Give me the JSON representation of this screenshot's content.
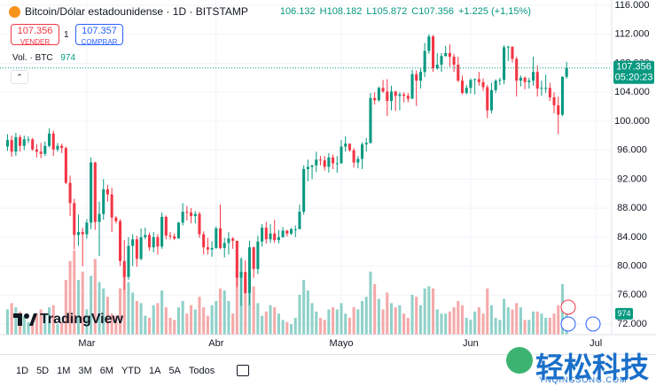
{
  "header": {
    "title": "Bitcoin/Dólar estadounidense · 1D · BITSTAMP",
    "open": "106.132",
    "high": "H108.182",
    "low": "L105.872",
    "close": "C107.356",
    "change": "+1.225 (+1,15%)"
  },
  "trade": {
    "sell_price": "107.356",
    "sell_label": "VENDER",
    "spread": "1",
    "buy_price": "107.357",
    "buy_label": "COMPRAR"
  },
  "volume_legend": {
    "label": "Vol. · BTC"
  },
  "branding": {
    "logo": "TradingView"
  },
  "ranges": [
    "1D",
    "5D",
    "1M",
    "3M",
    "6M",
    "YTD",
    "1A",
    "5A",
    "Todos"
  ],
  "watermark": {
    "title": "轻松科技",
    "url": "YNQINGSONG.COM"
  },
  "chart_data": {
    "type": "candlestick",
    "up_color": "#089981",
    "down_color": "#f23645",
    "up_volume_color": "#8fd1c9",
    "down_volume_color": "#f5a9a9",
    "grid": true,
    "last_price_label": "107.356",
    "countdown": "05:20:23",
    "xlim": [
      -1.8,
      144.8
    ],
    "xticks": [
      {
        "value": 19,
        "label": "Mar"
      },
      {
        "value": 50,
        "label": "Abr"
      },
      {
        "value": 80,
        "label": "Mayo"
      },
      {
        "value": 111,
        "label": "Jun"
      },
      {
        "value": 141,
        "label": "Jul"
      }
    ],
    "ylim": [
      70540,
      116730
    ],
    "yticks": [
      {
        "value": 72000,
        "label": "72.000"
      },
      {
        "value": 76000,
        "label": "76.000"
      },
      {
        "value": 80000,
        "label": "80.000"
      },
      {
        "value": 84000,
        "label": "84.000"
      },
      {
        "value": 88000,
        "label": "88.000"
      },
      {
        "value": 92000,
        "label": "92.000"
      },
      {
        "value": 96000,
        "label": "96.000"
      },
      {
        "value": 100000,
        "label": "100.000"
      },
      {
        "value": 104000,
        "label": "104.000"
      },
      {
        "value": 108000,
        "label": "108.000"
      },
      {
        "value": 112000,
        "label": "112.000"
      },
      {
        "value": 116000,
        "label": "116.000"
      }
    ],
    "open": [
      96500,
      97400,
      95800,
      97800,
      96600,
      97500,
      97500,
      96100,
      95800,
      95500,
      96600,
      98300,
      96100,
      96600,
      96300,
      91500,
      88700,
      84300,
      84700,
      84400,
      86000,
      94300,
      86100,
      87200,
      90600,
      89900,
      86700,
      86200,
      80700,
      78500,
      82800,
      83700,
      81000,
      84000,
      84300,
      82600,
      84000,
      82700,
      86800,
      84200,
      84100,
      83800,
      86000,
      87500,
      87400,
      86900,
      87200,
      84400,
      82600,
      82300,
      82500,
      85200,
      82500,
      83200,
      83800,
      83500,
      78400,
      79200,
      76300,
      82600,
      79600,
      83400,
      85300,
      83700,
      84500,
      83600,
      84000,
      84900,
      84500,
      85100,
      85100,
      87500,
      93400,
      93700,
      93900,
      94700,
      94600,
      93700,
      95000,
      94200,
      94200,
      96500,
      96900,
      96000,
      94300,
      94800,
      96800,
      97000,
      103200,
      102900,
      104600,
      104100,
      102800,
      104100,
      103500,
      103700,
      103500,
      103100,
      106500,
      105600,
      106800,
      109700,
      111700,
      107300,
      107800,
      109000,
      109400,
      108900,
      107800,
      105600,
      103900,
      104600,
      105700,
      105800,
      105400,
      104700,
      101500,
      104300,
      105600,
      105700,
      110200,
      110300,
      108600,
      105600,
      106000,
      105400,
      105600,
      106800,
      104500,
      104600,
      104600,
      103300,
      102200,
      100900,
      106132
    ],
    "high": [
      98200,
      98000,
      98400,
      98100,
      98000,
      97900,
      97700,
      96800,
      97000,
      97200,
      99000,
      98700,
      97000,
      96900,
      96500,
      92500,
      89300,
      87100,
      85300,
      86500,
      95000,
      94400,
      88900,
      92000,
      91200,
      90800,
      86900,
      86500,
      83600,
      84000,
      84400,
      84200,
      85200,
      85300,
      84600,
      84700,
      84400,
      87400,
      87000,
      84700,
      84500,
      86100,
      88700,
      88300,
      88000,
      87600,
      87500,
      84800,
      83900,
      83400,
      85500,
      88500,
      83900,
      84700,
      84000,
      83500,
      81200,
      80800,
      83500,
      82700,
      84200,
      85800,
      86100,
      85800,
      86400,
      85000,
      85400,
      85000,
      85300,
      85600,
      88500,
      93900,
      94700,
      94000,
      95800,
      95200,
      95200,
      95600,
      95400,
      95200,
      97400,
      97900,
      96900,
      96300,
      95200,
      97100,
      97700,
      103900,
      104000,
      104800,
      105700,
      105800,
      104900,
      104200,
      104000,
      104000,
      103900,
      107100,
      107000,
      107300,
      110800,
      112000,
      111900,
      109400,
      109400,
      110400,
      110600,
      109300,
      108900,
      106300,
      105000,
      105900,
      105900,
      106800,
      105900,
      105000,
      105300,
      105800,
      106000,
      110500,
      110400,
      110300,
      108900,
      106300,
      106200,
      106000,
      108900,
      107700,
      105600,
      106400,
      105300,
      104000,
      103400,
      106200,
      108182
    ],
    "low": [
      95900,
      95100,
      95200,
      95800,
      96000,
      97000,
      95900,
      95000,
      94900,
      95200,
      96400,
      95200,
      95800,
      95600,
      91300,
      86900,
      82300,
      82800,
      80000,
      83800,
      85100,
      85000,
      81400,
      86400,
      88900,
      84700,
      85900,
      80000,
      76700,
      78100,
      80000,
      79900,
      80800,
      83700,
      82100,
      81900,
      81600,
      82400,
      83700,
      83700,
      83600,
      83800,
      85600,
      86300,
      85900,
      85900,
      83900,
      81600,
      81600,
      81300,
      82400,
      82300,
      81200,
      81600,
      82400,
      77100,
      74500,
      76200,
      74600,
      78400,
      78900,
      82700,
      83100,
      83200,
      83200,
      83100,
      83900,
      84100,
      84300,
      84000,
      85100,
      87100,
      91700,
      92000,
      93000,
      93900,
      93200,
      92900,
      93400,
      92900,
      94100,
      95800,
      95800,
      93600,
      93500,
      93400,
      95800,
      96900,
      102300,
      102700,
      103900,
      100700,
      101500,
      101400,
      101500,
      102600,
      102600,
      103100,
      102100,
      104500,
      106100,
      109300,
      106800,
      107100,
      106800,
      108900,
      107500,
      106800,
      105400,
      103700,
      103700,
      103800,
      103700,
      104900,
      104200,
      100400,
      101100,
      103900,
      105000,
      105100,
      108300,
      108100,
      103400,
      104800,
      104400,
      104500,
      104900,
      103400,
      103500,
      103900,
      102800,
      101100,
      98200,
      100700,
      105872
    ],
    "close": [
      97400,
      95800,
      97800,
      96600,
      97500,
      97500,
      96100,
      95800,
      95500,
      96600,
      98300,
      96100,
      96600,
      96300,
      91500,
      88700,
      84300,
      84700,
      84400,
      86000,
      94300,
      86100,
      87200,
      90600,
      89900,
      86700,
      86200,
      80700,
      78500,
      82800,
      83700,
      81000,
      84000,
      84300,
      82600,
      84000,
      82700,
      86800,
      84200,
      84100,
      83800,
      86000,
      87500,
      87400,
      86900,
      87200,
      84400,
      82600,
      82300,
      82500,
      85200,
      82500,
      83200,
      83800,
      83500,
      78400,
      79200,
      76300,
      82600,
      79600,
      83400,
      85300,
      83700,
      84500,
      83600,
      84000,
      84900,
      84500,
      85100,
      85100,
      87500,
      93400,
      93700,
      93900,
      94700,
      94600,
      93700,
      95000,
      94200,
      94200,
      96500,
      96900,
      96000,
      94300,
      94800,
      96800,
      97000,
      103200,
      102900,
      104600,
      104100,
      102800,
      104100,
      103500,
      103700,
      103500,
      103100,
      106500,
      105600,
      106800,
      109700,
      111700,
      107300,
      107800,
      109000,
      109400,
      108900,
      107800,
      105600,
      103900,
      104600,
      105700,
      105800,
      105400,
      104700,
      101500,
      104300,
      105600,
      105700,
      110200,
      110300,
      108600,
      105600,
      106000,
      105400,
      105600,
      106800,
      104500,
      104600,
      104600,
      103300,
      102200,
      100900,
      106131,
      107356
    ],
    "volume": [
      1200,
      1500,
      1300,
      1100,
      900,
      600,
      500,
      1000,
      1200,
      1000,
      1300,
      1400,
      500,
      600,
      2600,
      3500,
      4000,
      2600,
      3000,
      1200,
      2800,
      3600,
      2500,
      2200,
      1800,
      1000,
      900,
      2200,
      3300,
      2500,
      2000,
      1600,
      1500,
      900,
      800,
      1400,
      1500,
      2100,
      1300,
      800,
      700,
      1300,
      1600,
      1000,
      1400,
      1200,
      1800,
      1300,
      900,
      1400,
      1600,
      2200,
      2100,
      1600,
      1000,
      2900,
      3600,
      2600,
      3900,
      2300,
      1500,
      900,
      1100,
      1400,
      1300,
      1000,
      700,
      600,
      500,
      800,
      1900,
      2600,
      2100,
      1500,
      1100,
      800,
      700,
      1200,
      1300,
      1200,
      1500,
      1000,
      800,
      1300,
      1200,
      1600,
      1800,
      3000,
      2400,
      1700,
      1200,
      2000,
      1500,
      1300,
      1400,
      1000,
      800,
      1900,
      1800,
      1400,
      2200,
      2300,
      2200,
      1200,
      1000,
      1000,
      1100,
      1300,
      1600,
      1400,
      800,
      700,
      1100,
      1300,
      1000,
      2200,
      1400,
      800,
      700,
      1700,
      1300,
      1200,
      1500,
      1300,
      700,
      700,
      1100,
      1100,
      1000,
      800,
      800,
      1000,
      1400,
      2400,
      974
    ]
  }
}
